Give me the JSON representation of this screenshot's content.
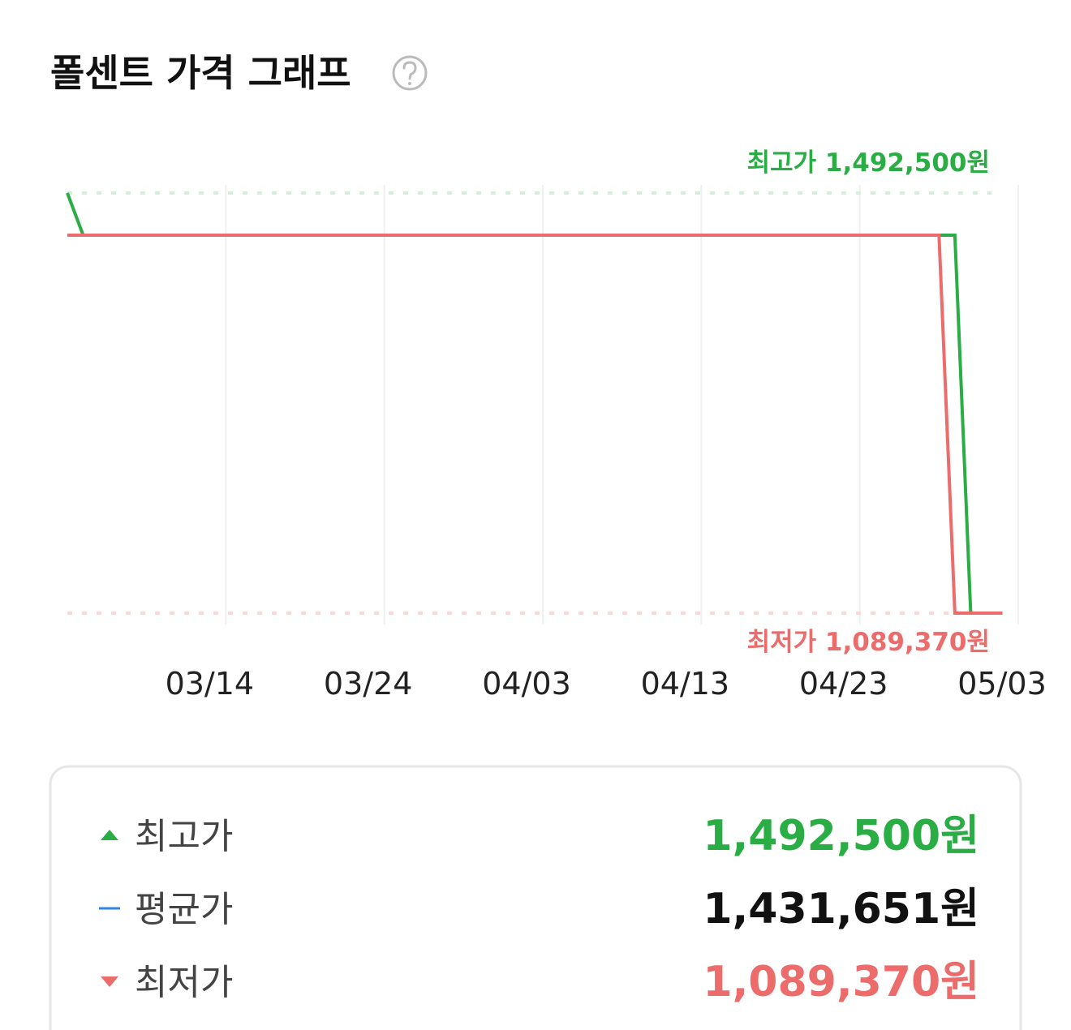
{
  "header": {
    "title": "폴센트 가격 그래프"
  },
  "chart_data": {
    "type": "line",
    "xlim": [
      "03/04",
      "05/03"
    ],
    "xticks": [
      "03/14",
      "03/24",
      "04/03",
      "04/13",
      "04/23",
      "05/03"
    ],
    "ylim": [
      1089370,
      1492500
    ],
    "grid": true,
    "series": [
      {
        "color": "#2aad44",
        "x": [
          "03/04",
          "03/05",
          "04/29",
          "04/30",
          "05/02"
        ],
        "values": [
          1492500,
          1452000,
          1452000,
          1089370,
          1089370
        ]
      },
      {
        "color": "#ec6b6b",
        "x": [
          "03/04",
          "04/28",
          "04/29",
          "05/02"
        ],
        "values": [
          1452000,
          1452000,
          1089370,
          1089370
        ]
      }
    ],
    "annotations": [
      {
        "text": "최고가 1,492,500원",
        "value": 1492500,
        "color": "#2aad44",
        "line_color": "#d3efdb",
        "position": "above"
      },
      {
        "text": "최저가 1,089,370원",
        "value": 1089370,
        "color": "#ec6b6b",
        "line_color": "#fbd9d9",
        "position": "below"
      }
    ]
  },
  "summary": {
    "rows": [
      {
        "label": "최고가",
        "value": "1,492,500원",
        "marker": "up",
        "marker_color": "#2aad44",
        "color": "#2aad44"
      },
      {
        "label": "평균가",
        "value": "1,431,651원",
        "marker": "dash",
        "marker_color": "#2f86e6",
        "color": "#111111"
      },
      {
        "label": "최저가",
        "value": "1,089,370원",
        "marker": "down",
        "marker_color": "#ec6b6b",
        "color": "#ec6b6b"
      }
    ]
  }
}
